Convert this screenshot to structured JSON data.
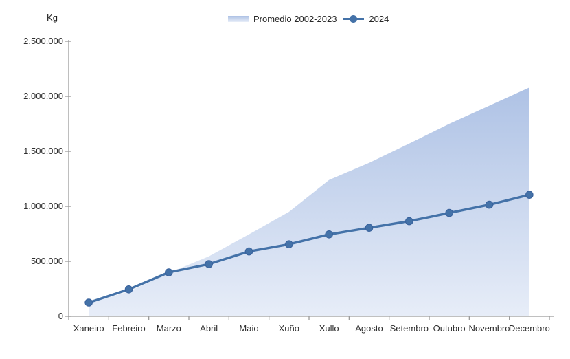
{
  "page": {
    "background": "#ffffff"
  },
  "chart_data": {
    "type": "area+line",
    "title": "",
    "xlabel": "",
    "ylabel": "Kg",
    "categories": [
      "Xaneiro",
      "Febreiro",
      "Marzo",
      "Abril",
      "Maio",
      "Xuño",
      "Xullo",
      "Agosto",
      "Setembro",
      "Outubro",
      "Novembro",
      "Decembro"
    ],
    "series": [
      {
        "name": "Promedio 2002-2023",
        "type": "area",
        "values": [
          120000,
          225000,
          395000,
          545000,
          745000,
          950000,
          1240000,
          1395000,
          1570000,
          1750000,
          1915000,
          2080000
        ],
        "fill_top": "#aec2e5",
        "fill_bottom": "#e7edf8"
      },
      {
        "name": "2024",
        "type": "line",
        "values": [
          125000,
          245000,
          400000,
          475000,
          590000,
          655000,
          745000,
          805000,
          865000,
          940000,
          1015000,
          1105000
        ],
        "color": "#4472a8",
        "marker_stroke": "#38619c",
        "marker": "circle"
      }
    ],
    "ylim": [
      0,
      2500000
    ],
    "y_tick_interval": 500000,
    "y_tick_labels": [
      "0",
      "500.000",
      "1.000.000",
      "1.500.000",
      "2.000.000",
      "2.500.000"
    ],
    "legend_position": "top-center",
    "grid": false,
    "axis_color": "#9b9b9b",
    "text_color": "#2e2e2e"
  }
}
